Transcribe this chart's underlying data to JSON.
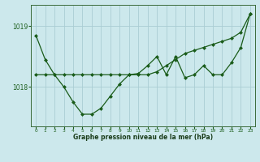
{
  "title": "Graphe pression niveau de la mer (hPa)",
  "background_color": "#cce8ec",
  "grid_color": "#aacdd4",
  "line_color": "#1a5c1a",
  "x_labels": [
    "0",
    "1",
    "2",
    "3",
    "4",
    "5",
    "6",
    "7",
    "8",
    "9",
    "10",
    "11",
    "12",
    "13",
    "14",
    "15",
    "16",
    "17",
    "18",
    "19",
    "20",
    "21",
    "22",
    "23"
  ],
  "hourly": [
    1018.85,
    1018.45,
    1018.2,
    1018.0,
    1017.75,
    1017.55,
    1017.55,
    1017.65,
    1017.85,
    1018.05,
    1018.2,
    1018.22,
    1018.35,
    1018.5,
    1018.2,
    1018.5,
    1018.15,
    1018.2,
    1018.35,
    1018.2,
    1018.2,
    1018.4,
    1018.65,
    1019.2
  ],
  "trend": [
    1018.2,
    1018.2,
    1018.2,
    1018.2,
    1018.2,
    1018.2,
    1018.2,
    1018.2,
    1018.2,
    1018.2,
    1018.2,
    1018.2,
    1018.2,
    1018.25,
    1018.35,
    1018.45,
    1018.55,
    1018.6,
    1018.65,
    1018.7,
    1018.75,
    1018.8,
    1018.9,
    1019.2
  ],
  "ylim_min": 1017.35,
  "ylim_max": 1019.35,
  "yticks": [
    1018,
    1019
  ],
  "marker_size": 2.5,
  "linewidth": 0.9
}
